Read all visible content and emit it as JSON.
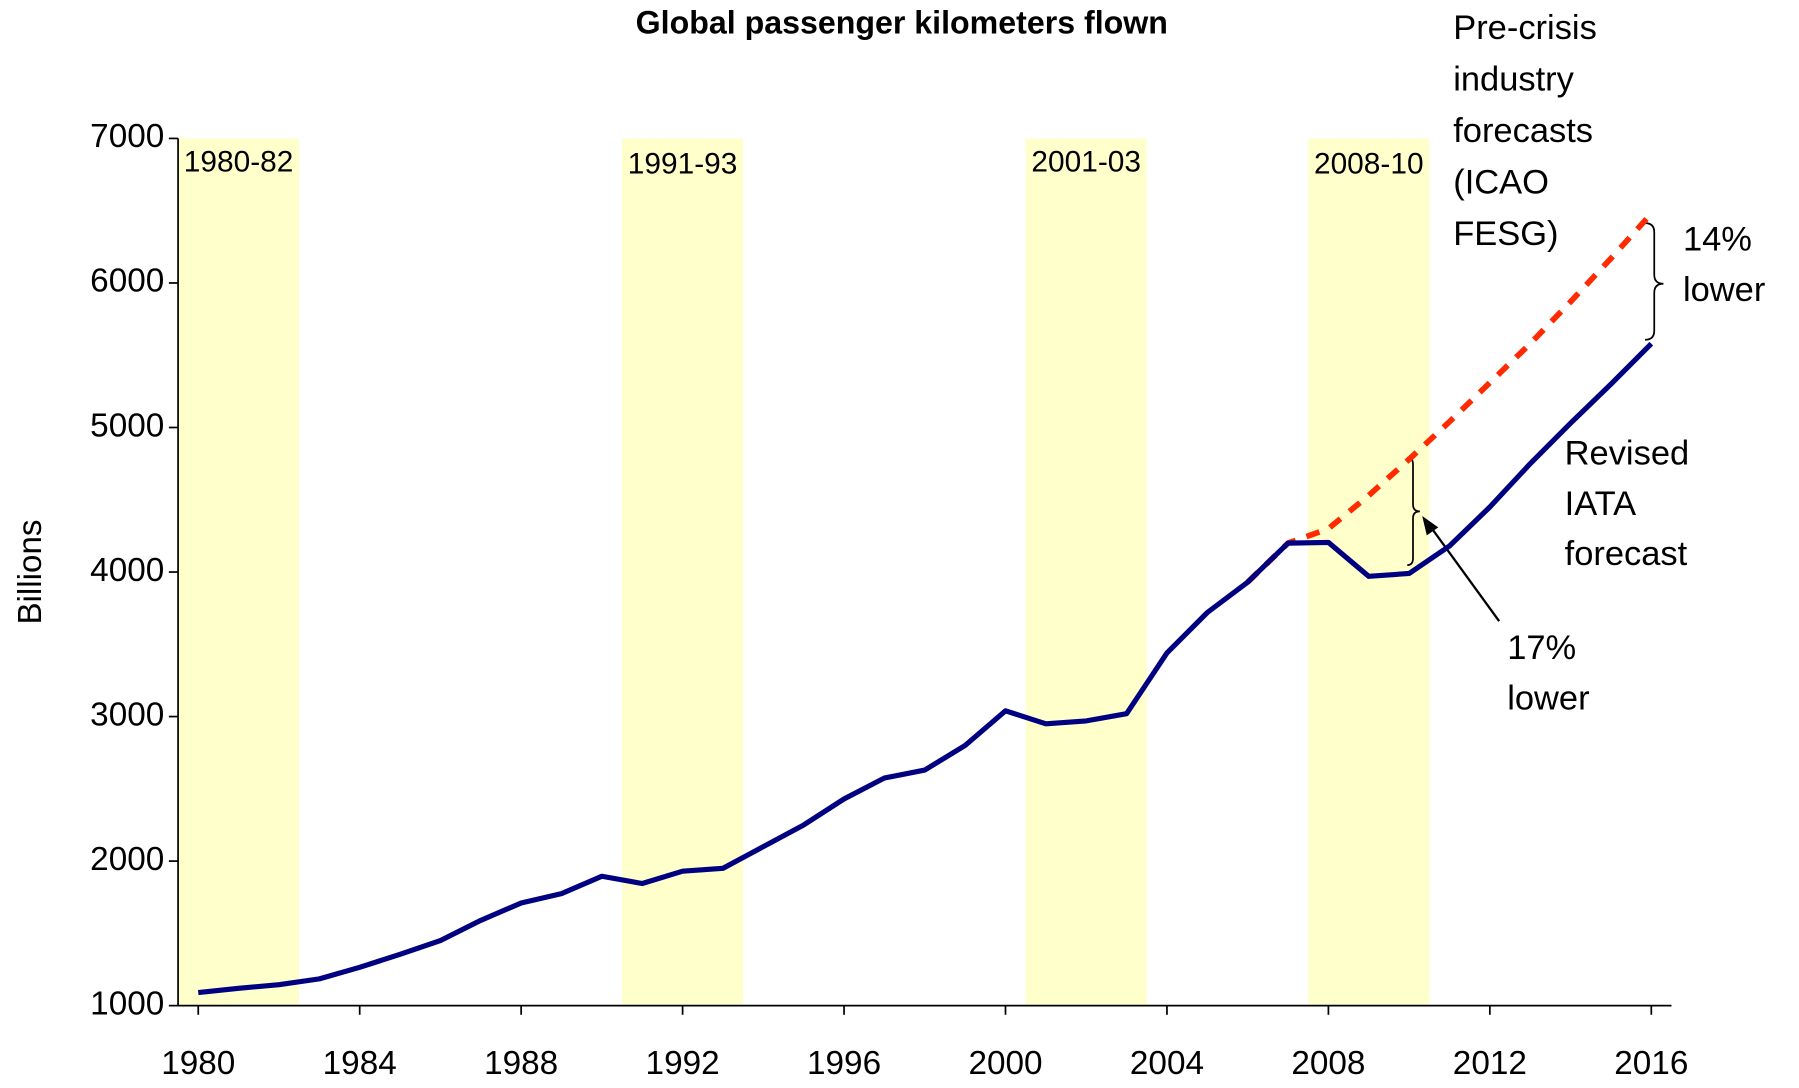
{
  "chart_data": {
    "type": "line",
    "title": "Global passenger kilometers flown",
    "ylabel": "Billions",
    "x": [
      1980,
      1981,
      1982,
      1983,
      1984,
      1985,
      1986,
      1987,
      1988,
      1989,
      1990,
      1991,
      1992,
      1993,
      1994,
      1995,
      1996,
      1997,
      1998,
      1999,
      2000,
      2001,
      2002,
      2003,
      2004,
      2005,
      2006,
      2007,
      2008,
      2009,
      2010,
      2011,
      2012,
      2013,
      2014,
      2015,
      2016
    ],
    "series": [
      {
        "name": "Pre-crisis industry forecasts (ICAO FESG)",
        "color": "#ff2a00",
        "dashed": true,
        "values": [
          null,
          null,
          null,
          null,
          null,
          null,
          null,
          null,
          null,
          null,
          null,
          null,
          null,
          null,
          null,
          null,
          null,
          null,
          null,
          null,
          null,
          null,
          null,
          null,
          null,
          null,
          3930,
          4200,
          4300,
          4530,
          4780,
          5040,
          5310,
          5580,
          5870,
          6170,
          6480
        ]
      },
      {
        "name": "Revised IATA forecast",
        "color": "#000080",
        "values": [
          1090,
          1120,
          1145,
          1185,
          1265,
          1355,
          1450,
          1590,
          1710,
          1775,
          1895,
          1845,
          1930,
          1950,
          2100,
          2250,
          2430,
          2575,
          2630,
          2800,
          3040,
          2950,
          2970,
          3020,
          3440,
          3720,
          3930,
          4200,
          4205,
          3970,
          3990,
          4180,
          4450,
          4750,
          5030,
          5300,
          5580
        ]
      }
    ],
    "bands": [
      {
        "label": "1980-82",
        "start": 1980,
        "end": 1982
      },
      {
        "label": "1991-93",
        "start": 1991,
        "end": 1993
      },
      {
        "label": "2001-03",
        "start": 2001,
        "end": 2003
      },
      {
        "label": "2008-10",
        "start": 2008,
        "end": 2010
      }
    ],
    "band_color": "#ffffcc",
    "annotations": [
      "Pre-crisis industry forecasts (ICAO FESG)",
      "14% lower",
      "Revised IATA forecast",
      "17% lower"
    ],
    "xlim": [
      1979.5,
      2016.5
    ],
    "xticks": [
      1980,
      1984,
      1988,
      1992,
      1996,
      2000,
      2004,
      2008,
      2012,
      2016
    ],
    "ylim": [
      1000,
      7000
    ],
    "yticks": [
      1000,
      2000,
      3000,
      4000,
      5000,
      6000,
      7000
    ]
  }
}
